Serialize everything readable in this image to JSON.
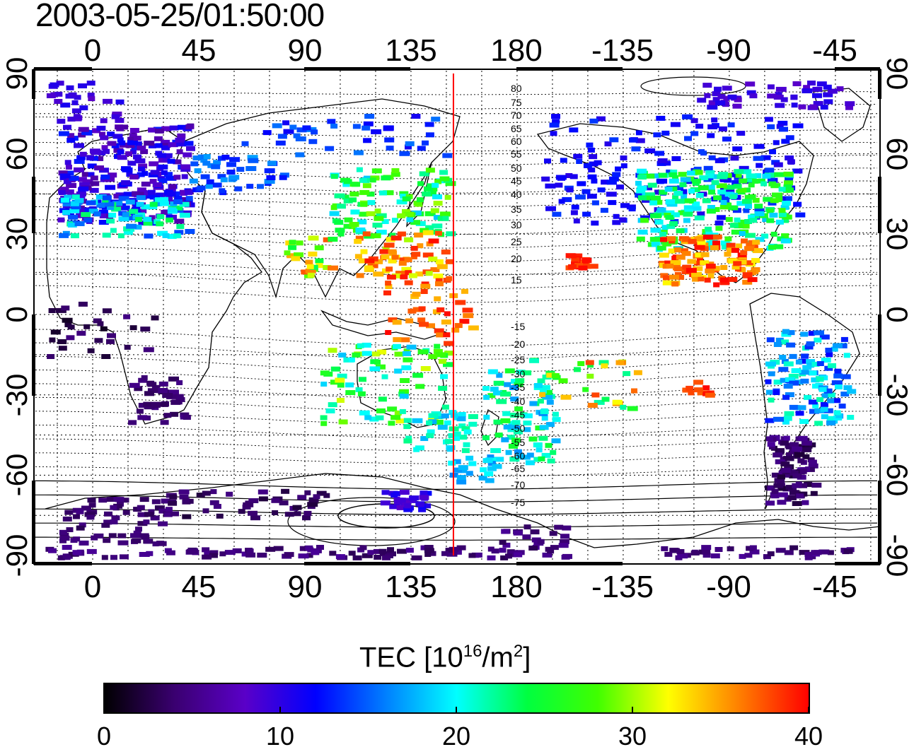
{
  "timestamp": "2003-05-25/01:50:00",
  "map": {
    "lon_ticks": [
      "0",
      "45",
      "90",
      "135",
      "180",
      "-135",
      "-90",
      "-45"
    ],
    "lat_ticks": [
      "90",
      "60",
      "30",
      "0",
      "-30",
      "-60",
      "-90"
    ],
    "marker_longitude": 153,
    "contour_labels": [
      "80",
      "75",
      "70",
      "65",
      "60",
      "55",
      "50",
      "45",
      "40",
      "35",
      "30",
      "25",
      "20",
      "15",
      "-15",
      "-20",
      "-25",
      "-30",
      "-35",
      "-40",
      "-45",
      "-50",
      "-55",
      "-60",
      "-65",
      "-70",
      "-75"
    ]
  },
  "colorbar": {
    "title_main": "TEC  [10",
    "title_exp": "16",
    "title_unit": "/m",
    "title_exp2": "2",
    "title_end": "]",
    "ticks": [
      "0",
      "10",
      "20",
      "30",
      "40"
    ],
    "min": 0,
    "max": 40,
    "colors": [
      "#000000",
      "#3a0070",
      "#5a00c8",
      "#0000ff",
      "#0080ff",
      "#00ffff",
      "#00ff40",
      "#40ff00",
      "#ffff00",
      "#ff8000",
      "#ff0000"
    ]
  },
  "colors": {
    "marker_line": "#ff0000",
    "contour": "#000000"
  }
}
